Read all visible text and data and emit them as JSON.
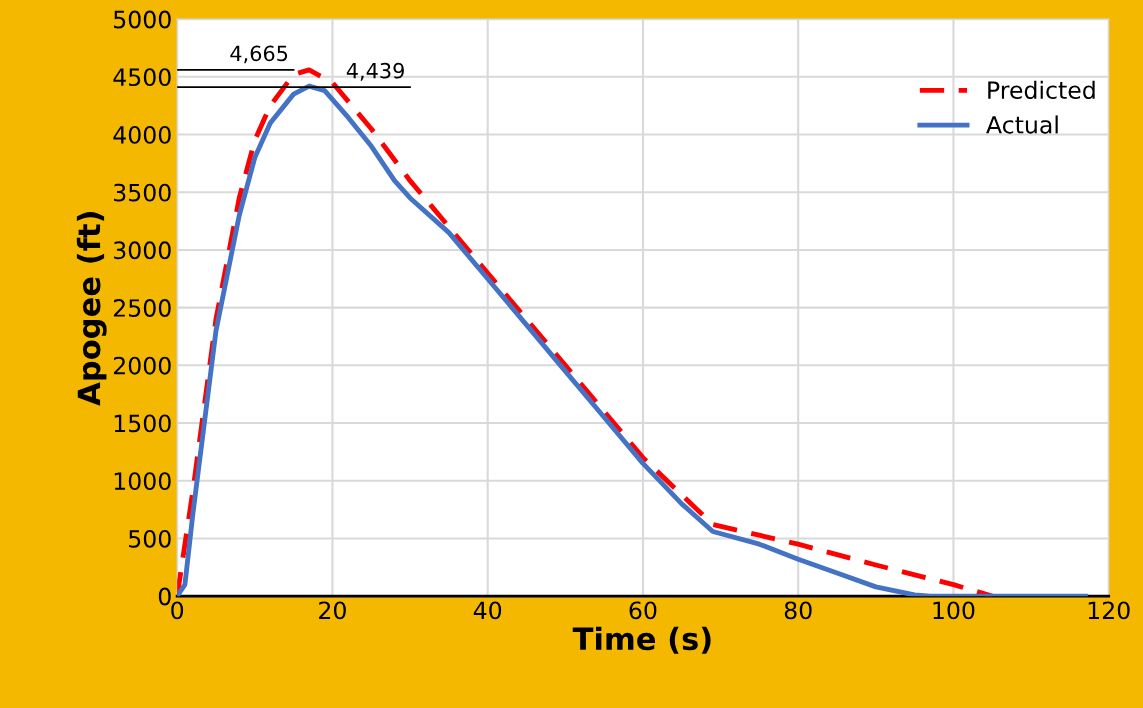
{
  "chart_data": {
    "type": "line",
    "xlabel": "Time (s)",
    "ylabel": "Apogee (ft)",
    "xlim": [
      0,
      120
    ],
    "xticks": [
      0,
      20,
      40,
      60,
      80,
      100,
      120
    ],
    "ylim": [
      0,
      5000
    ],
    "yticks": [
      0,
      500,
      1000,
      1500,
      2000,
      2500,
      3000,
      3500,
      4000,
      4500,
      5000
    ],
    "grid": true,
    "legend": "top right",
    "series": [
      {
        "name": "Predicted",
        "color": "#ff0000",
        "line_style": "dashed",
        "x": [
          0,
          2,
          5,
          8,
          10,
          12,
          15,
          17,
          20,
          25,
          30,
          40,
          50,
          60,
          69,
          80,
          90,
          100,
          105
        ],
        "values": [
          0,
          900,
          2400,
          3450,
          3950,
          4250,
          4520,
          4560,
          4450,
          4050,
          3600,
          2800,
          2000,
          1200,
          620,
          450,
          270,
          100,
          0
        ]
      },
      {
        "name": "Actual",
        "color": "#4472c4",
        "line_style": "solid",
        "x": [
          0,
          1,
          2,
          5,
          8,
          10,
          12,
          15,
          17,
          19,
          22,
          25,
          28,
          30,
          35,
          40,
          45,
          50,
          55,
          60,
          65,
          69,
          75,
          80,
          85,
          90,
          95,
          97,
          117
        ],
        "values": [
          0,
          100,
          700,
          2300,
          3300,
          3800,
          4100,
          4350,
          4420,
          4380,
          4150,
          3900,
          3600,
          3450,
          3150,
          2750,
          2350,
          1950,
          1550,
          1150,
          800,
          560,
          450,
          320,
          200,
          80,
          10,
          0,
          0
        ]
      }
    ],
    "annotations": [
      "4,665",
      "4,439"
    ]
  }
}
